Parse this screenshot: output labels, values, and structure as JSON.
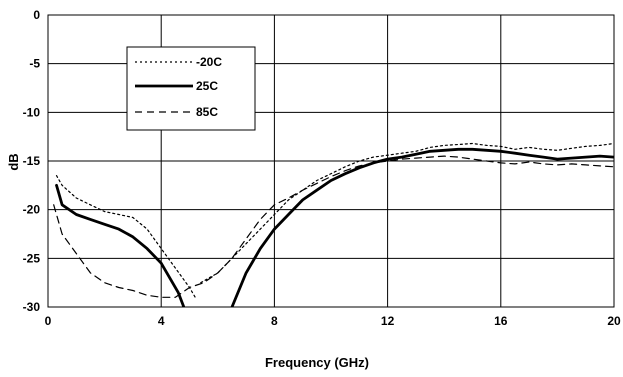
{
  "chart_data": {
    "type": "line",
    "title": "",
    "xlabel": "Frequency (GHz)",
    "ylabel": "dB",
    "xlim": [
      0,
      20
    ],
    "ylim": [
      -30,
      0
    ],
    "xticks": [
      0,
      4,
      8,
      12,
      16,
      20
    ],
    "yticks": [
      0,
      -5,
      -10,
      -15,
      -20,
      -25,
      -30
    ],
    "grid": true,
    "legend_position": "top-left",
    "series": [
      {
        "name": "-20C",
        "style": "dotted",
        "x": [
          0.3,
          0.5,
          1.0,
          1.5,
          2.0,
          2.5,
          3.0,
          3.5,
          4.0,
          4.5,
          5.0,
          5.2
        ],
        "y": [
          -16.5,
          -17.5,
          -18.8,
          -19.5,
          -20.2,
          -20.5,
          -20.8,
          -22.0,
          -24.0,
          -26.0,
          -28.0,
          -29.0
        ],
        "x2": [
          5.4,
          6.0,
          6.5,
          7.0,
          7.5,
          8.0,
          8.5,
          9.0,
          9.5,
          10.0,
          10.5,
          11.0,
          11.5,
          12.0,
          12.5,
          13.0,
          13.5,
          14.0,
          14.5,
          15.0,
          15.5,
          16.0,
          16.5,
          17.0,
          17.5,
          18.0,
          18.5,
          19.0,
          19.5,
          20.0
        ],
        "y2": [
          -27.5,
          -26.5,
          -25.0,
          -23.5,
          -22.0,
          -20.5,
          -19.0,
          -18.0,
          -17.0,
          -16.3,
          -15.6,
          -15.0,
          -14.6,
          -14.4,
          -14.2,
          -14.0,
          -13.6,
          -13.4,
          -13.3,
          -13.2,
          -13.4,
          -13.5,
          -13.8,
          -13.6,
          -13.8,
          -13.9,
          -13.7,
          -13.5,
          -13.4,
          -13.2
        ]
      },
      {
        "name": "25C",
        "style": "solid",
        "x": [
          0.3,
          0.5,
          1.0,
          1.5,
          2.0,
          2.5,
          3.0,
          3.5,
          4.0,
          4.3,
          4.6,
          4.8
        ],
        "y": [
          -17.5,
          -19.5,
          -20.5,
          -21.0,
          -21.5,
          -22.0,
          -22.8,
          -24.0,
          -25.5,
          -27.0,
          -28.5,
          -30.0
        ],
        "x2": [
          6.5,
          7.0,
          7.5,
          8.0,
          8.5,
          9.0,
          9.5,
          10.0,
          10.5,
          11.0,
          11.5,
          12.0,
          12.5,
          13.0,
          13.5,
          14.0,
          14.5,
          15.0,
          15.5,
          16.0,
          16.5,
          17.0,
          17.5,
          18.0,
          18.5,
          19.0,
          19.5,
          20.0
        ],
        "y2": [
          -30.0,
          -26.5,
          -24.0,
          -22.0,
          -20.5,
          -19.0,
          -18.0,
          -17.0,
          -16.3,
          -15.7,
          -15.2,
          -14.8,
          -14.6,
          -14.3,
          -14.0,
          -13.9,
          -13.8,
          -13.8,
          -13.9,
          -14.0,
          -14.2,
          -14.4,
          -14.6,
          -14.8,
          -14.7,
          -14.6,
          -14.5,
          -14.6
        ]
      },
      {
        "name": "85C",
        "style": "dashed",
        "x": [
          0.2,
          0.5,
          1.0,
          1.5,
          2.0,
          2.5,
          3.0,
          3.5,
          4.0,
          4.5,
          5.0,
          5.5,
          6.0,
          6.5,
          7.0,
          7.5,
          8.0,
          8.5,
          9.0,
          9.5,
          10.0,
          10.5,
          11.0,
          11.5,
          12.0,
          12.5,
          13.0,
          13.5,
          14.0,
          14.5,
          15.0,
          15.5,
          16.0,
          16.5,
          17.0,
          17.5,
          18.0,
          18.5,
          19.0,
          19.5,
          20.0
        ],
        "y": [
          -19.5,
          -22.5,
          -24.5,
          -26.5,
          -27.5,
          -28.0,
          -28.3,
          -28.8,
          -29.0,
          -29.0,
          -28.0,
          -27.5,
          -26.5,
          -25.0,
          -23.0,
          -21.0,
          -19.5,
          -18.8,
          -18.0,
          -17.3,
          -16.6,
          -16.0,
          -15.5,
          -15.2,
          -15.0,
          -14.8,
          -14.7,
          -14.6,
          -14.5,
          -14.6,
          -14.8,
          -15.0,
          -15.2,
          -15.3,
          -15.1,
          -15.3,
          -15.4,
          -15.3,
          -15.4,
          -15.5,
          -15.6
        ]
      }
    ]
  }
}
